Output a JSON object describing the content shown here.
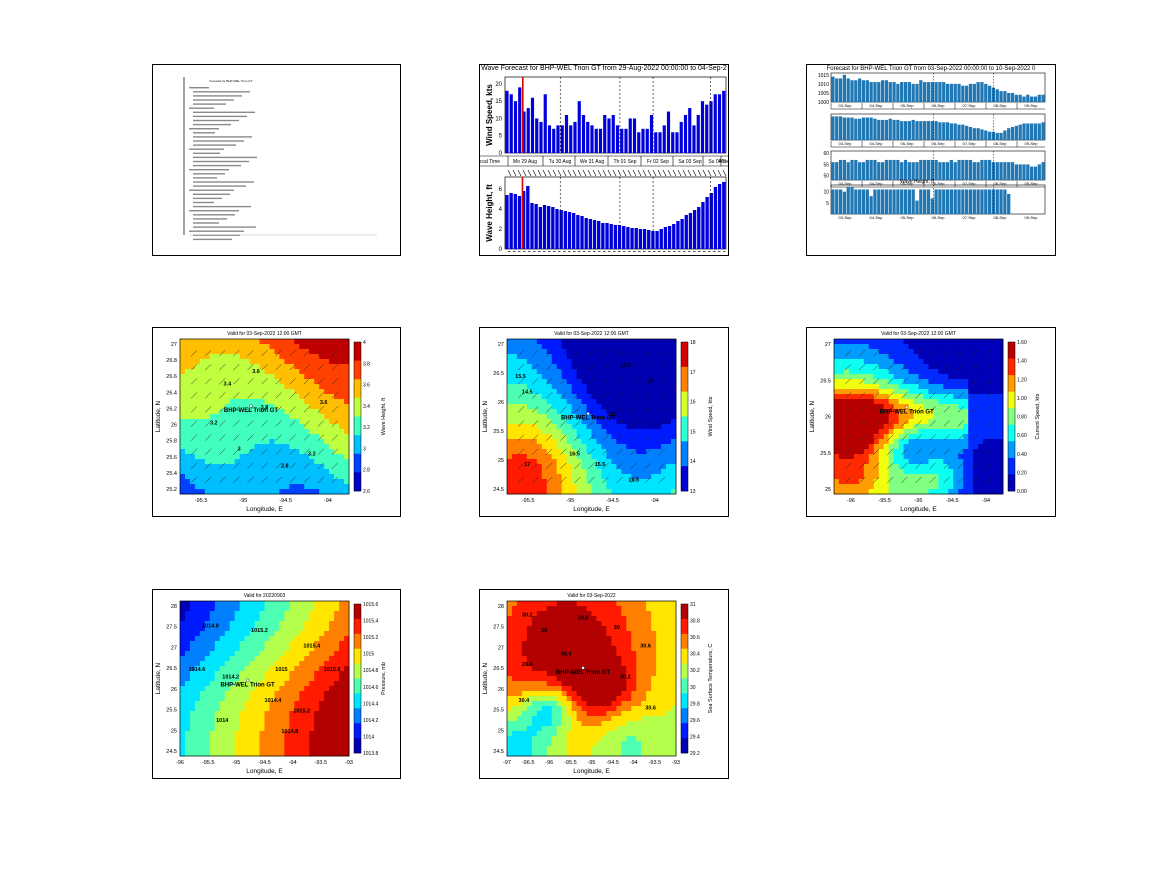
{
  "text_panel": {
    "header": "Forecast for BHP-WEL Trion GT",
    "lines_note": ""
  },
  "wave_forecast": {
    "title": "Wave Forecast for BHP-WEL Trion GT from 29-Aug-2022 00:00:00 to 04-Sep-2",
    "top_ylabel": "Wind Speed, kts",
    "bottom_ylabel": "Wave Height, ft",
    "day_labels": [
      "Local Time",
      "Mo 29 Aug",
      "Tu 30 Aug",
      "We 31 Aug",
      "Th 01 Sep",
      "Fr 02 Sep",
      "Sa 03 Sep",
      "Su 04 Sep",
      "Mo"
    ],
    "top_yticks": [
      "0",
      "5",
      "10",
      "15",
      "20"
    ],
    "bottom_yticks": [
      "0",
      "2",
      "4",
      "6"
    ],
    "bar_color": "#0000dd",
    "marker_color": "#dd0000"
  },
  "forecast_panel": {
    "title": "Forecast for BHP-WEL Trion GT from 03-Sep-2022 00:00:00 to 10-Sep-2022 0",
    "sub1_yticks": [
      "1015",
      "1010",
      "1005",
      "1000"
    ],
    "sub3_yticks": [
      "60",
      "55",
      "50"
    ],
    "sub4_title": "Wave Height, ft",
    "sub4_yticks": [
      "10",
      "5"
    ],
    "day_labels": [
      "03-Sep",
      "04-Sep",
      "05-Sep",
      "06-Sep",
      "07-Sep",
      "08-Sep",
      "09-Sep"
    ],
    "bar_color": "#1f77b4"
  },
  "maps": [
    {
      "title": "Valid for 03-Sep-2022 12:00 GMT",
      "site_label": "BHP-WEL Trion GT",
      "xlabel": "Longitude, E",
      "ylabel": "Latitude, N",
      "xticks": [
        "-95.5",
        "-95",
        "-94.5",
        "-94"
      ],
      "yticks": [
        "27",
        "26.8",
        "26.6",
        "26.4",
        "26.2",
        "26",
        "25.8",
        "25.6",
        "25.4",
        "25.2"
      ],
      "cbar_label": "Wave Height, ft",
      "cbar_ticks": [
        "4",
        "3.8",
        "3.6",
        "3.4",
        "3.2",
        "3",
        "2.8",
        "2.6"
      ],
      "contour_labels": [
        "3.4",
        "3.6",
        "3.8",
        "3.2",
        "3",
        "2.8",
        "3.6",
        "3.2"
      ]
    },
    {
      "title": "Valid for 03-Sep-2022 12:00 GMT",
      "site_label": "BHP-WEL Trion GT",
      "xlabel": "Longitude, E",
      "ylabel": "Latitude, N",
      "xticks": [
        "-95.5",
        "-95",
        "-94.5",
        "-94"
      ],
      "yticks": [
        "27",
        "26.5",
        "26",
        "25.5",
        "25",
        "24.5"
      ],
      "cbar_label": "Wind Speed, kts",
      "cbar_ticks": [
        "18",
        "17",
        "16",
        "15",
        "14",
        "13"
      ],
      "contour_labels": [
        "15.5",
        "14.5",
        "16",
        "15",
        "13.5",
        "15.5",
        "17",
        "16.5",
        "16.5"
      ]
    },
    {
      "title": "Valid for 03-Sep-2022 12:00 GMT",
      "site_label": "BHP-WEL Trion GT",
      "xlabel": "Longitude, E",
      "ylabel": "Latitude, N",
      "xticks": [
        "-96",
        "-95.5",
        "-95",
        "-94.5",
        "-94"
      ],
      "yticks": [
        "27",
        "26.5",
        "26",
        "25.5",
        "25"
      ],
      "cbar_label": "Current Speed, kts",
      "cbar_ticks": [
        "1.60",
        "1.40",
        "1.20",
        "1.00",
        "0.80",
        "0.60",
        "0.40",
        "0.20",
        "0.00"
      ]
    },
    {
      "title": "Valid for 20220903",
      "site_label": "BHP-WEL Trion GT",
      "xlabel": "Longitude, E",
      "ylabel": "Latitude, N",
      "xticks": [
        "-96",
        "-95.5",
        "-95",
        "-94.5",
        "-94",
        "-93.5",
        "-93"
      ],
      "yticks": [
        "28",
        "27.5",
        "27",
        "26.5",
        "26",
        "25.5",
        "25",
        "24.5"
      ],
      "cbar_label": "Pressure, mb",
      "cbar_ticks": [
        "1015.6",
        "1015.4",
        "1015.2",
        "1015",
        "1014.8",
        "1014.6",
        "1014.4",
        "1014.2",
        "1014",
        "1013.8"
      ],
      "contour_labels": [
        "1014.8",
        "1014.6",
        "1014.2",
        "1014",
        "1015.2",
        "1015",
        "1015.4",
        "1015.6",
        "1014.4",
        "1014.8",
        "1015.2"
      ]
    },
    {
      "title": "Valid for 03-Sep-2022",
      "site_label": "BHP-WEL Trion GT",
      "xlabel": "Longitude, E",
      "ylabel": "Latitude, N",
      "xticks": [
        "-97",
        "-96.5",
        "-96",
        "-95.5",
        "-95",
        "-94.5",
        "-94",
        "-93.5",
        "-93"
      ],
      "yticks": [
        "28",
        "27.5",
        "27",
        "26.5",
        "26",
        "25.5",
        "25",
        "24.5"
      ],
      "cbar_label": "Sea Surface Temperature, C",
      "cbar_ticks": [
        "31",
        "30.8",
        "30.6",
        "30.4",
        "30.2",
        "30",
        "29.8",
        "29.6",
        "29.4",
        "29.2"
      ],
      "contour_labels": [
        "30.2",
        "30",
        "29.8",
        "30",
        "30.4",
        "30.6",
        "30.2",
        "29.8",
        "30.4",
        "30.6"
      ]
    }
  ]
}
